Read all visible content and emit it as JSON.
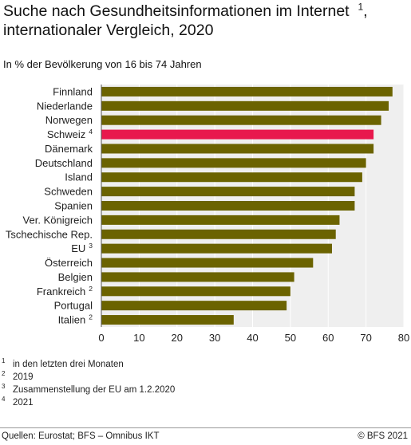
{
  "header": {
    "title_line1": "Suche nach Gesundheitsinformationen im Internet",
    "title_line1_sup": "1",
    "title_line1_tail": ",",
    "title_line2": "internationaler Vergleich, 2020",
    "subtitle": "In % der Bevölkerung von 16 bis 74 Jahren"
  },
  "colors": {
    "bar": "#6b6300",
    "highlight": "#e8184d",
    "plot_background": "#efefef",
    "grid": "#ffffff"
  },
  "chart_data": {
    "type": "bar",
    "orientation": "horizontal",
    "categories": [
      "Finnland",
      "Niederlande",
      "Norwegen",
      "Schweiz",
      "Dänemark",
      "Deutschland",
      "Island",
      "Schweden",
      "Spanien",
      "Ver. Königreich",
      "Tschechische Rep.",
      "EU",
      "Österreich",
      "Belgien",
      "Frankreich",
      "Portugal",
      "Italien"
    ],
    "category_notes": [
      "",
      "",
      "",
      "4",
      "",
      "",
      "",
      "",
      "",
      "",
      "",
      "3",
      "",
      "",
      "2",
      "",
      "2"
    ],
    "values": [
      77,
      76,
      74,
      72,
      72,
      70,
      69,
      67,
      67,
      63,
      62,
      61,
      56,
      51,
      50,
      49,
      35
    ],
    "highlight": [
      "Schweiz"
    ],
    "xlim": [
      0,
      80
    ],
    "xticks": [
      0,
      10,
      20,
      30,
      40,
      50,
      60,
      70,
      80
    ],
    "grid": "vertical",
    "title": "",
    "xlabel": "",
    "ylabel": ""
  },
  "footnotes": [
    {
      "num": "1",
      "text": "in den letzten drei Monaten"
    },
    {
      "num": "2",
      "text": "2019"
    },
    {
      "num": "3",
      "text": "Zusammenstellung der EU am 1.2.2020"
    },
    {
      "num": "4",
      "text": "2021"
    }
  ],
  "footer": {
    "source": "Quellen: Eurostat; BFS – Omnibus IKT",
    "copyright": "© BFS 2021"
  }
}
